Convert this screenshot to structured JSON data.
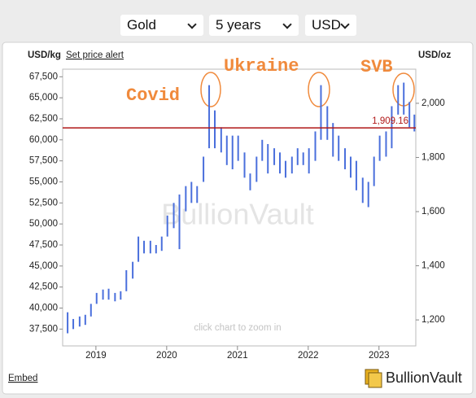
{
  "controls": [
    "Gold",
    "5 years",
    "USD"
  ],
  "price_alert": "Set price alert",
  "embed": "Embed",
  "brand": "BullionVault",
  "chart_data": {
    "type": "range",
    "y_label": "USD/kg",
    "y2_label": "USD/oz",
    "watermark": "BullionVault",
    "hint": "click chart to zoom in",
    "annotations": [
      "Covid",
      "Ukraine",
      "SVB"
    ],
    "color": "#4a6fdc",
    "reference": {
      "value": 1909.16,
      "label": "1,909.16",
      "axis": "y2",
      "color": "#b01818"
    },
    "x": [
      2018.6,
      2018.68,
      2018.77,
      2018.85,
      2018.93,
      2019.01,
      2019.1,
      2019.18,
      2019.27,
      2019.35,
      2019.43,
      2019.52,
      2019.6,
      2019.68,
      2019.77,
      2019.85,
      2019.93,
      2020.01,
      2020.1,
      2020.18,
      2020.27,
      2020.35,
      2020.43,
      2020.52,
      2020.6,
      2020.68,
      2020.77,
      2020.85,
      2020.93,
      2021.01,
      2021.1,
      2021.18,
      2021.27,
      2021.35,
      2021.43,
      2021.52,
      2021.6,
      2021.68,
      2021.77,
      2021.85,
      2021.93,
      2022.01,
      2022.1,
      2022.18,
      2022.27,
      2022.35,
      2022.43,
      2022.52,
      2022.6,
      2022.68,
      2022.77,
      2022.85,
      2022.93,
      2023.01,
      2023.1,
      2023.18,
      2023.27,
      2023.35,
      2023.43,
      2023.5
    ],
    "low": [
      37000,
      37500,
      37800,
      38000,
      39000,
      40500,
      41000,
      41000,
      40800,
      41000,
      42000,
      43500,
      45500,
      46500,
      46500,
      46500,
      46800,
      48500,
      49500,
      47000,
      51500,
      52500,
      52500,
      55000,
      59000,
      59000,
      58500,
      57000,
      56500,
      57500,
      55500,
      54000,
      55000,
      57500,
      56000,
      57000,
      56000,
      55500,
      56000,
      57000,
      57000,
      56000,
      57500,
      60000,
      60000,
      58000,
      57500,
      56500,
      55500,
      54000,
      52500,
      52000,
      54500,
      57500,
      58000,
      59000,
      63000,
      63000,
      61500,
      61000
    ],
    "high": [
      39500,
      38700,
      39000,
      39200,
      40500,
      41800,
      42200,
      42300,
      41800,
      42000,
      44500,
      45500,
      48500,
      48000,
      48000,
      47500,
      48500,
      51000,
      52500,
      53500,
      54500,
      55000,
      54500,
      58000,
      66500,
      63500,
      61500,
      60500,
      60500,
      60500,
      58500,
      56000,
      58000,
      60000,
      59500,
      59000,
      58500,
      57500,
      58000,
      59000,
      58500,
      59000,
      61000,
      66500,
      64000,
      62000,
      60500,
      59000,
      58000,
      57500,
      55500,
      55000,
      58000,
      60500,
      61000,
      64000,
      66500,
      66800,
      64500,
      63000
    ],
    "xlim": [
      2018.53,
      2023.52
    ],
    "xticks": [
      2019,
      2020,
      2021,
      2022,
      2023
    ],
    "ylim": [
      35500,
      68400
    ],
    "yticks": [
      {
        "value": 37500,
        "label": "37,500"
      },
      {
        "value": 40000,
        "label": "40,000"
      },
      {
        "value": 42500,
        "label": "42,500"
      },
      {
        "value": 45000,
        "label": "45,000"
      },
      {
        "value": 47500,
        "label": "47,500"
      },
      {
        "value": 50000,
        "label": "50,000"
      },
      {
        "value": 52500,
        "label": "52,500"
      },
      {
        "value": 55000,
        "label": "55,000"
      },
      {
        "value": 57500,
        "label": "57,500"
      },
      {
        "value": 60000,
        "label": "60,000"
      },
      {
        "value": 62500,
        "label": "62,500"
      },
      {
        "value": 65000,
        "label": "65,000"
      },
      {
        "value": 67500,
        "label": "67,500"
      }
    ],
    "y2lim": [
      1104,
      2126
    ],
    "y2ticks": [
      {
        "value": 1200,
        "label": "1,200"
      },
      {
        "value": 1400,
        "label": "1,400"
      },
      {
        "value": 1600,
        "label": "1,600"
      },
      {
        "value": 1800,
        "label": "1,800"
      },
      {
        "value": 2000,
        "label": "2,000"
      }
    ]
  }
}
